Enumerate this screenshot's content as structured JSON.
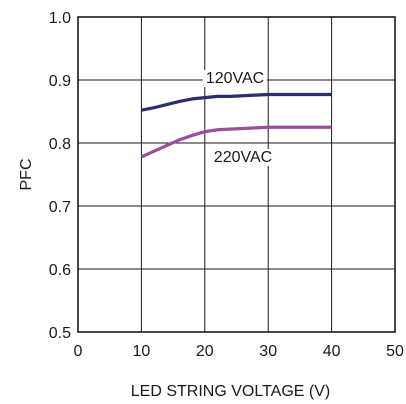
{
  "chart_data": {
    "type": "line",
    "xlabel": "LED  STRING VOLTAGE (V)",
    "ylabel": "PFC",
    "xlim": [
      0,
      50
    ],
    "ylim": [
      0.5,
      1.0
    ],
    "xticks": [
      "0",
      "10",
      "20",
      "30",
      "40",
      "50"
    ],
    "yticks": [
      "0.5",
      "0.6",
      "0.7",
      "0.8",
      "0.9",
      "1.0"
    ],
    "grid": true,
    "series": [
      {
        "name": "120VAC",
        "color": "#2b2f6b",
        "x": [
          10,
          12,
          14,
          16,
          18,
          20,
          22,
          24,
          26,
          28,
          30,
          32,
          35,
          40
        ],
        "y": [
          0.852,
          0.856,
          0.861,
          0.866,
          0.87,
          0.872,
          0.874,
          0.874,
          0.875,
          0.876,
          0.877,
          0.877,
          0.877,
          0.877
        ]
      },
      {
        "name": "220VAC",
        "color": "#9b4f9b",
        "x": [
          10,
          12,
          14,
          16,
          18,
          20,
          22,
          24,
          26,
          28,
          30,
          32,
          35,
          40
        ],
        "y": [
          0.778,
          0.787,
          0.796,
          0.805,
          0.812,
          0.818,
          0.821,
          0.822,
          0.823,
          0.824,
          0.825,
          0.825,
          0.825,
          0.825
        ]
      }
    ]
  }
}
